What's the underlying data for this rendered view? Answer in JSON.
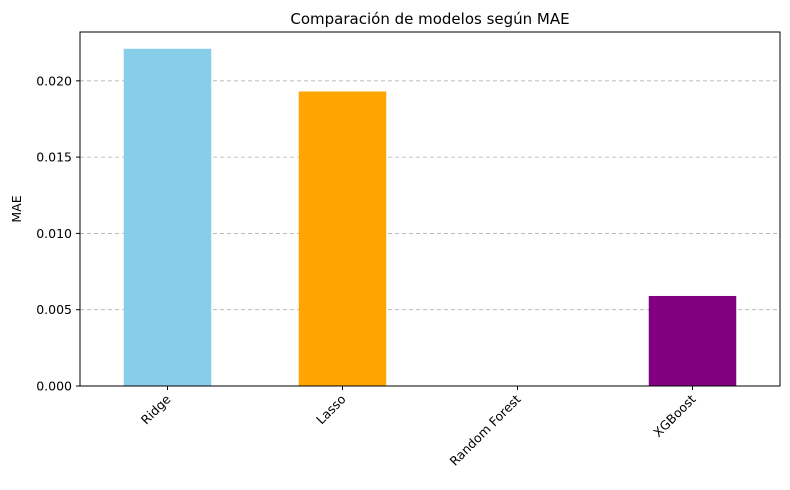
{
  "chart_data": {
    "type": "bar",
    "title": "Comparación de modelos según MAE",
    "xlabel": "",
    "ylabel": "MAE",
    "categories": [
      "Ridge",
      "Lasso",
      "Random Forest",
      "XGBoost"
    ],
    "values": [
      0.0221,
      0.0193,
      0.0,
      0.0059
    ],
    "colors": [
      "#87CEEB",
      "#FFA500",
      "#008000",
      "#800080"
    ],
    "ylim": [
      0,
      0.0232
    ],
    "yticks": [
      0.0,
      0.005,
      0.01,
      0.015,
      0.02
    ],
    "ytick_labels": [
      "0.000",
      "0.005",
      "0.010",
      "0.015",
      "0.020"
    ],
    "grid": "y-dashed",
    "xtick_rotation": 45
  }
}
